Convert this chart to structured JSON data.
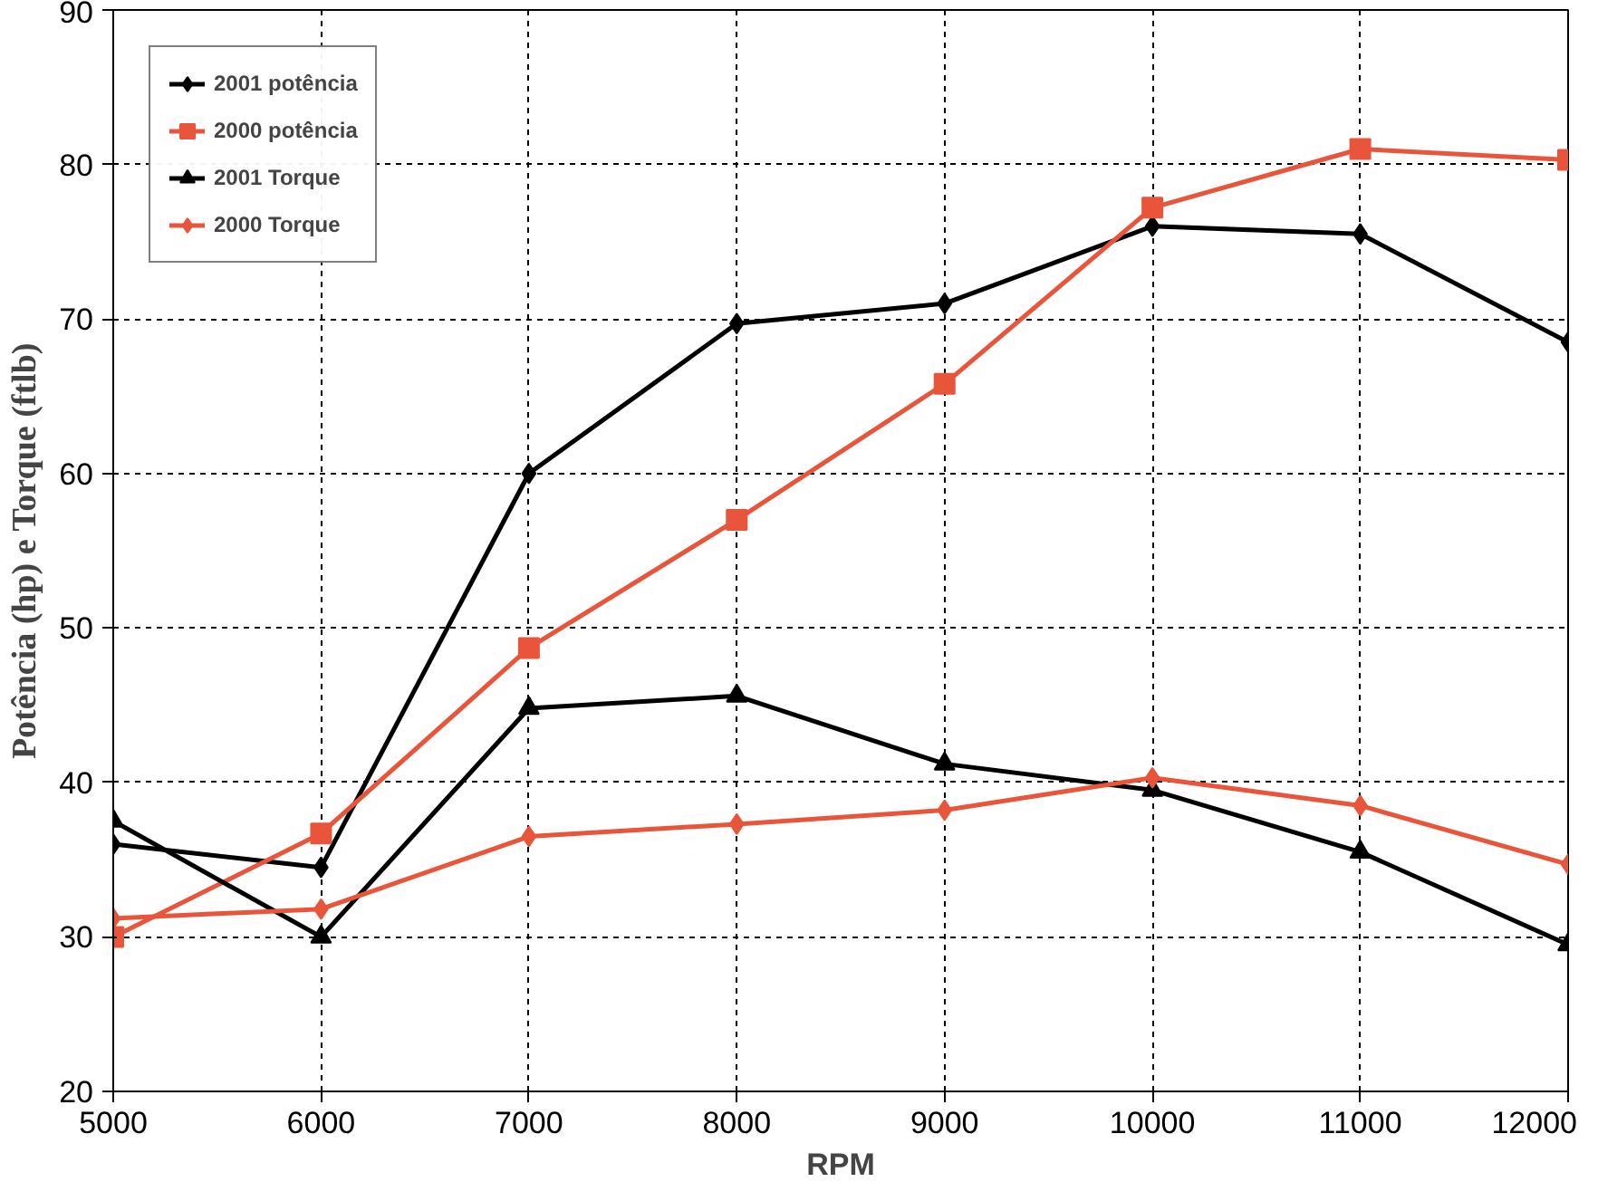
{
  "chart_data": {
    "type": "line",
    "xlabel": "RPM",
    "ylabel": "Potência (hp) e Torque (ftlb)",
    "x": [
      5000,
      6000,
      7000,
      8000,
      9000,
      10000,
      11000,
      12000
    ],
    "xlim": [
      5000,
      12000
    ],
    "xticks": [
      5000,
      6000,
      7000,
      8000,
      9000,
      10000,
      11000,
      12000
    ],
    "ylim": [
      20,
      90
    ],
    "yticks": [
      20,
      30,
      40,
      50,
      60,
      70,
      80,
      90
    ],
    "grid": true,
    "legend": "top left",
    "line_style": "solid",
    "series": [
      {
        "name": "2001 potência",
        "color": "#000000",
        "marker": "diamond",
        "values": [
          36,
          34.5,
          60,
          69.7,
          71,
          76,
          75.5,
          68.5
        ]
      },
      {
        "name": "2000 potência",
        "color": "#e8553a",
        "marker": "square",
        "values": [
          30,
          36.7,
          48.7,
          57,
          65.8,
          77.2,
          81,
          80.3
        ]
      },
      {
        "name": "2001 Torque",
        "color": "#000000",
        "marker": "triangle",
        "values": [
          37.5,
          30,
          44.8,
          45.6,
          41.2,
          39.5,
          35.5,
          29.5
        ]
      },
      {
        "name": "2000 Torque",
        "color": "#e8553a",
        "marker": "diamond",
        "values": [
          31.2,
          31.8,
          36.5,
          37.3,
          38.2,
          40.3,
          38.5,
          34.7
        ]
      }
    ]
  }
}
